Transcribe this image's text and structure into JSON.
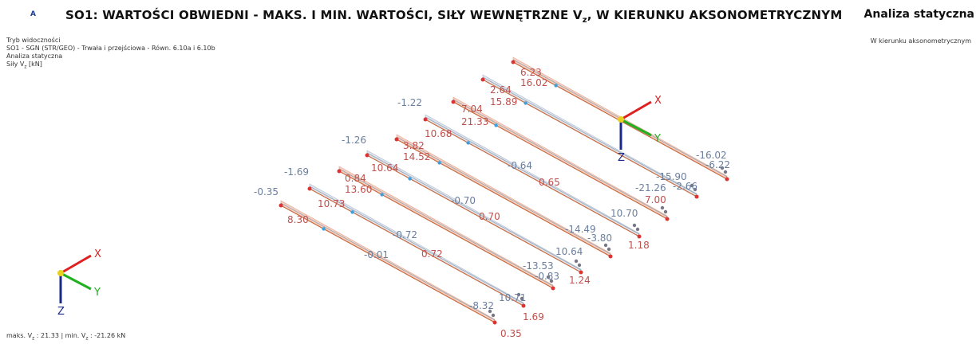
{
  "header": {
    "badge": "A",
    "title": [
      "SO1: WARTOŚCI OBWIEDNI - MAKS. I MIN. WARTOŚCI, SIŁY WEWNĘTRZNE V",
      "z",
      ", W KIERUNKU AKSONOMETRYCZNYM"
    ],
    "right_title": "Analiza statyczna",
    "right_subtitle": "W kierunku aksonometrycznym"
  },
  "info": {
    "lines": [
      "Tryb widoczności",
      "SO1 - SGN (STR/GEO) - Trwała i przejściowa - Równ. 6.10a i 6.10b",
      "Analiza statyczna"
    ],
    "force": [
      "Siły V",
      "z",
      " [kN]"
    ]
  },
  "footer": [
    "maks. V",
    "z",
    " : 21.33 | min. V",
    "z",
    " : -21.26 kN"
  ],
  "axes": [
    {
      "x": "X",
      "y": "Y",
      "z": "Z"
    },
    {
      "x": "X",
      "y": "Y",
      "z": "Z"
    }
  ],
  "labels": [
    {
      "text": "6.23",
      "color": "#c0504d"
    },
    {
      "text": "16.02",
      "color": "#c0504d"
    },
    {
      "text": "2.64",
      "color": "#c0504d"
    },
    {
      "text": "15.89",
      "color": "#c0504d"
    },
    {
      "text": "-1.22",
      "color": "#6a7f9f"
    },
    {
      "text": "7.04",
      "color": "#c0504d"
    },
    {
      "text": "21.33",
      "color": "#c0504d"
    },
    {
      "text": "10.68",
      "color": "#c0504d"
    },
    {
      "text": "-1.26",
      "color": "#6a7f9f"
    },
    {
      "text": "3.82",
      "color": "#c0504d"
    },
    {
      "text": "14.52",
      "color": "#c0504d"
    },
    {
      "text": "10.64",
      "color": "#c0504d"
    },
    {
      "text": "-1.69",
      "color": "#6a7f9f"
    },
    {
      "text": "0.84",
      "color": "#c0504d"
    },
    {
      "text": "13.60",
      "color": "#c0504d"
    },
    {
      "text": "-0.35",
      "color": "#6a7f9f"
    },
    {
      "text": "10.73",
      "color": "#c0504d"
    },
    {
      "text": "8.30",
      "color": "#c0504d"
    },
    {
      "text": "-0.64",
      "color": "#6a7f9f"
    },
    {
      "text": "0.65",
      "color": "#c0504d"
    },
    {
      "text": "-0.70",
      "color": "#6a7f9f"
    },
    {
      "text": "0.70",
      "color": "#c0504d"
    },
    {
      "text": "-0.72",
      "color": "#6a7f9f"
    },
    {
      "text": "0.72",
      "color": "#c0504d"
    },
    {
      "text": "-0.01",
      "color": "#6a7f9f"
    },
    {
      "text": "-16.02",
      "color": "#6a7f9f"
    },
    {
      "text": "-6.22",
      "color": "#6a7f9f"
    },
    {
      "text": "-15.90",
      "color": "#6a7f9f"
    },
    {
      "text": "-2.66",
      "color": "#6a7f9f"
    },
    {
      "text": "-21.26",
      "color": "#6a7f9f"
    },
    {
      "text": "7.00",
      "color": "#c0504d"
    },
    {
      "text": "10.70",
      "color": "#6a7f9f"
    },
    {
      "text": "-14.49",
      "color": "#6a7f9f"
    },
    {
      "text": "-3.80",
      "color": "#6a7f9f"
    },
    {
      "text": "1.18",
      "color": "#c0504d"
    },
    {
      "text": "10.64",
      "color": "#6a7f9f"
    },
    {
      "text": "-13.53",
      "color": "#6a7f9f"
    },
    {
      "text": "-0.83",
      "color": "#6a7f9f"
    },
    {
      "text": "1.24",
      "color": "#c0504d"
    },
    {
      "text": "10.71",
      "color": "#6a7f9f"
    },
    {
      "text": "1.69",
      "color": "#c0504d"
    },
    {
      "text": "-8.32",
      "color": "#6a7f9f"
    },
    {
      "text": "0.35",
      "color": "#c0504d"
    }
  ]
}
